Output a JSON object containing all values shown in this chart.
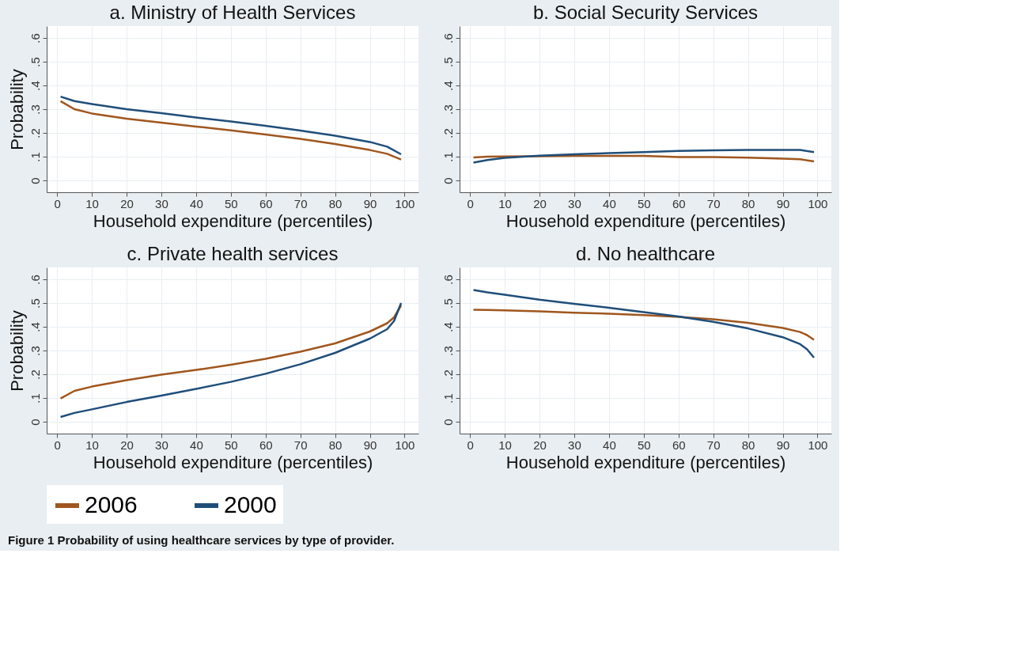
{
  "chart_data": [
    {
      "type": "line",
      "title": "a. Ministry of Health Services",
      "xlabel": "Household expenditure (percentiles)",
      "ylabel": "Probability",
      "xlim": [
        -3,
        104
      ],
      "ylim": [
        -0.05,
        0.65
      ],
      "xticks": [
        0,
        10,
        20,
        30,
        40,
        50,
        60,
        70,
        80,
        90,
        100
      ],
      "yticks": [
        0,
        {
          "value": 0.1,
          "label": ".1"
        },
        {
          "value": 0.2,
          "label": ".2"
        },
        {
          "value": 0.3,
          "label": ".3"
        },
        {
          "value": 0.4,
          "label": ".4"
        },
        {
          "value": 0.5,
          "label": ".5"
        },
        {
          "value": 0.6,
          "label": ".6"
        }
      ],
      "grid": true,
      "legend": "bottom",
      "marker": "none",
      "line_style": "solid",
      "x": [
        1,
        5,
        10,
        20,
        30,
        40,
        50,
        60,
        70,
        80,
        90,
        95,
        99
      ],
      "series": [
        {
          "name": "2006",
          "color": "#a0561e",
          "values": [
            0.334,
            0.3,
            0.282,
            0.26,
            0.243,
            0.227,
            0.211,
            0.193,
            0.175,
            0.153,
            0.128,
            0.112,
            0.088
          ]
        },
        {
          "name": "2000",
          "color": "#1f4e79",
          "values": [
            0.353,
            0.334,
            0.322,
            0.3,
            0.283,
            0.265,
            0.248,
            0.23,
            0.21,
            0.188,
            0.162,
            0.142,
            0.11
          ]
        }
      ]
    },
    {
      "type": "line",
      "title": "b. Social Security Services",
      "xlabel": "Household expenditure (percentiles)",
      "xlim": [
        -3,
        104
      ],
      "ylim": [
        -0.05,
        0.65
      ],
      "xticks": [
        0,
        10,
        20,
        30,
        40,
        50,
        60,
        70,
        80,
        90,
        100
      ],
      "yticks": [
        0,
        {
          "value": 0.1,
          "label": ".1"
        },
        {
          "value": 0.2,
          "label": ".2"
        },
        {
          "value": 0.3,
          "label": ".3"
        },
        {
          "value": 0.4,
          "label": ".4"
        },
        {
          "value": 0.5,
          "label": ".5"
        },
        {
          "value": 0.6,
          "label": ".6"
        }
      ],
      "grid": true,
      "legend": "bottom",
      "marker": "none",
      "line_style": "solid",
      "x": [
        1,
        5,
        10,
        20,
        30,
        40,
        50,
        60,
        70,
        80,
        90,
        95,
        99
      ],
      "series": [
        {
          "name": "2006",
          "color": "#a0561e",
          "values": [
            0.097,
            0.1,
            0.101,
            0.102,
            0.103,
            0.103,
            0.103,
            0.098,
            0.098,
            0.096,
            0.092,
            0.089,
            0.08
          ]
        },
        {
          "name": "2000",
          "color": "#1f4e79",
          "values": [
            0.075,
            0.086,
            0.095,
            0.104,
            0.11,
            0.115,
            0.119,
            0.124,
            0.127,
            0.128,
            0.128,
            0.128,
            0.119
          ]
        }
      ]
    },
    {
      "type": "line",
      "title": "c. Private health services",
      "xlabel": "Household expenditure (percentiles)",
      "ylabel": "Probability",
      "xlim": [
        -3,
        104
      ],
      "ylim": [
        -0.05,
        0.65
      ],
      "xticks": [
        0,
        10,
        20,
        30,
        40,
        50,
        60,
        70,
        80,
        90,
        100
      ],
      "yticks": [
        0,
        {
          "value": 0.1,
          "label": ".1"
        },
        {
          "value": 0.2,
          "label": ".2"
        },
        {
          "value": 0.3,
          "label": ".3"
        },
        {
          "value": 0.4,
          "label": ".4"
        },
        {
          "value": 0.5,
          "label": ".5"
        },
        {
          "value": 0.6,
          "label": ".6"
        }
      ],
      "grid": true,
      "legend": "bottom",
      "marker": "none",
      "line_style": "solid",
      "x": [
        1,
        5,
        10,
        20,
        30,
        40,
        50,
        60,
        70,
        80,
        90,
        95,
        97,
        99
      ],
      "series": [
        {
          "name": "2006",
          "color": "#a0561e",
          "values": [
            0.098,
            0.13,
            0.148,
            0.175,
            0.198,
            0.218,
            0.24,
            0.265,
            0.295,
            0.33,
            0.38,
            0.415,
            0.44,
            0.49
          ]
        },
        {
          "name": "2000",
          "color": "#1f4e79",
          "values": [
            0.02,
            0.037,
            0.052,
            0.083,
            0.11,
            0.138,
            0.168,
            0.202,
            0.242,
            0.29,
            0.35,
            0.39,
            0.425,
            0.5
          ]
        }
      ]
    },
    {
      "type": "line",
      "title": "d. No healthcare",
      "xlabel": "Household expenditure (percentiles)",
      "xlim": [
        -3,
        104
      ],
      "ylim": [
        -0.05,
        0.65
      ],
      "xticks": [
        0,
        10,
        20,
        30,
        40,
        50,
        60,
        70,
        80,
        90,
        100
      ],
      "yticks": [
        0,
        {
          "value": 0.1,
          "label": ".1"
        },
        {
          "value": 0.2,
          "label": ".2"
        },
        {
          "value": 0.3,
          "label": ".3"
        },
        {
          "value": 0.4,
          "label": ".4"
        },
        {
          "value": 0.5,
          "label": ".5"
        },
        {
          "value": 0.6,
          "label": ".6"
        }
      ],
      "grid": true,
      "legend": "bottom",
      "marker": "none",
      "line_style": "solid",
      "x": [
        1,
        5,
        10,
        20,
        30,
        40,
        50,
        60,
        70,
        80,
        90,
        95,
        97,
        99
      ],
      "series": [
        {
          "name": "2006",
          "color": "#a0561e",
          "values": [
            0.472,
            0.471,
            0.469,
            0.465,
            0.459,
            0.455,
            0.449,
            0.442,
            0.432,
            0.417,
            0.395,
            0.378,
            0.365,
            0.345
          ]
        },
        {
          "name": "2000",
          "color": "#1f4e79",
          "values": [
            0.555,
            0.545,
            0.535,
            0.514,
            0.497,
            0.48,
            0.462,
            0.443,
            0.421,
            0.393,
            0.356,
            0.327,
            0.305,
            0.27
          ]
        }
      ],
      "annotations": [
        "Figure 1 Probability of using healthcare services by type of provider."
      ]
    }
  ]
}
